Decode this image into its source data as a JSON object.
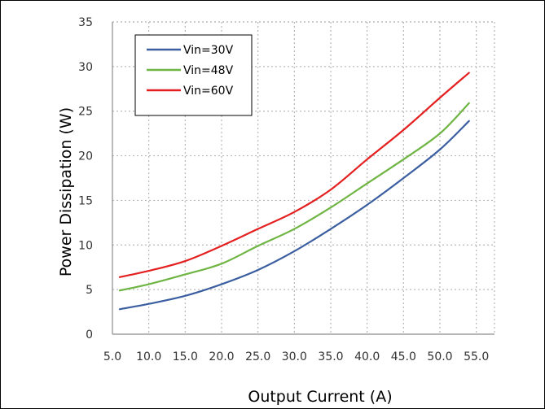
{
  "chart_data": {
    "type": "line",
    "title": "",
    "xlabel": "Output Current (A)",
    "ylabel": "Power Dissipation (W)",
    "xlim": [
      5,
      57.5
    ],
    "ylim": [
      0,
      35
    ],
    "xticks": [
      "5.0",
      "10.0",
      "15.0",
      "20.0",
      "25.0",
      "30.0",
      "35.0",
      "40.0",
      "45.0",
      "50.0",
      "55.0"
    ],
    "yticks": [
      "0",
      "5",
      "10",
      "15",
      "20",
      "25",
      "30",
      "35"
    ],
    "grid": true,
    "legend_position": "top-left",
    "series": [
      {
        "name": "Vin=30V",
        "color": "#3b5ea0",
        "x": [
          6,
          10,
          15,
          20,
          25,
          30,
          35,
          40,
          45,
          50,
          54
        ],
        "y": [
          2.8,
          3.4,
          4.3,
          5.6,
          7.2,
          9.3,
          11.8,
          14.5,
          17.5,
          20.7,
          23.9
        ]
      },
      {
        "name": "Vin=48V",
        "color": "#6fb543",
        "x": [
          6,
          10,
          15,
          20,
          25,
          30,
          35,
          40,
          45,
          50,
          54
        ],
        "y": [
          4.9,
          5.6,
          6.7,
          7.9,
          9.9,
          11.8,
          14.2,
          16.9,
          19.6,
          22.5,
          25.9
        ]
      },
      {
        "name": "Vin=60V",
        "color": "#e41f1f",
        "x": [
          6,
          10,
          15,
          20,
          25,
          30,
          35,
          40,
          45,
          50,
          54
        ],
        "y": [
          6.4,
          7.1,
          8.2,
          9.9,
          11.8,
          13.7,
          16.2,
          19.6,
          22.9,
          26.5,
          29.3
        ]
      }
    ]
  }
}
